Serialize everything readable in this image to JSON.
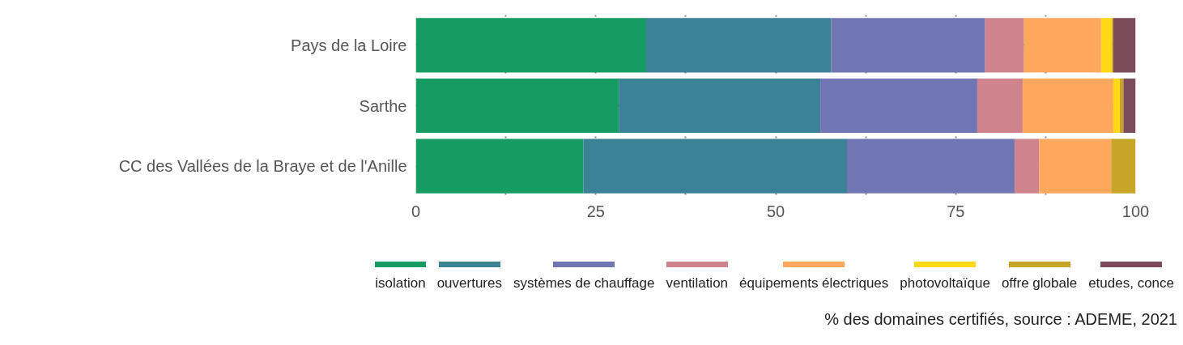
{
  "chart_data": {
    "type": "bar",
    "orientation": "horizontal",
    "stacked": true,
    "categories": [
      "Pays de la Loire",
      "Sarthe",
      "CC des Vallées de la Braye et de l'Anille"
    ],
    "series": [
      {
        "name": "isolation",
        "color": "#169b62",
        "values": [
          32.0,
          28.2,
          23.3
        ]
      },
      {
        "name": "ouvertures",
        "color": "#3b8297",
        "values": [
          25.7,
          28.0,
          36.6
        ]
      },
      {
        "name": "systèmes de chauffage",
        "color": "#7075b3",
        "values": [
          21.4,
          21.8,
          23.3
        ]
      },
      {
        "name": "ventilation",
        "color": "#ce838d",
        "values": [
          5.4,
          6.3,
          3.4
        ]
      },
      {
        "name": "équipements électriques",
        "color": "#ffa75c",
        "values": [
          10.7,
          12.6,
          10.0
        ]
      },
      {
        "name": "photovoltaïque",
        "color": "#ffd816",
        "values": [
          1.5,
          0.9,
          0
        ]
      },
      {
        "name": "offre globale",
        "color": "#c6a527",
        "values": [
          0.2,
          0.5,
          3.4
        ]
      },
      {
        "name": "etudes, conce",
        "color": "#7d4c5b",
        "values": [
          3.1,
          1.7,
          0
        ]
      }
    ],
    "xlim": [
      0,
      100
    ],
    "xticks": [
      0,
      {
        "value": 12.5,
        "label": null
      },
      25,
      {
        "value": 37.5,
        "label": null
      },
      50,
      {
        "value": 62.5,
        "label": null
      },
      75,
      {
        "value": 87.5,
        "label": null
      },
      100
    ],
    "grid": true,
    "legend": "bottom",
    "annotations": [
      "% des domaines certifiés, source : ADEME, 2021"
    ]
  }
}
